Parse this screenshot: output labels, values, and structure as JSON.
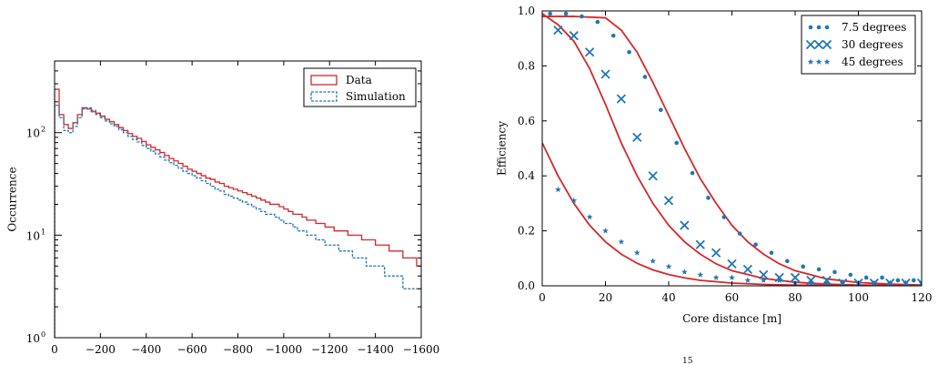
{
  "chart_data": [
    {
      "type": "step",
      "xlabel": "",
      "ylabel": "Occurrence",
      "yscale": "log",
      "xlim": [
        0,
        -1600
      ],
      "ylim": [
        1,
        500
      ],
      "xticks": [
        0,
        -200,
        -400,
        -600,
        -800,
        -1000,
        -1200,
        -1400,
        -1600
      ],
      "xtick_labels": [
        "0",
        "−200",
        "−400",
        "−600",
        "−800",
        "−1000",
        "−1200",
        "−1400",
        "−1600"
      ],
      "yticks": [
        1,
        10,
        100
      ],
      "ytick_labels": [
        "10",
        "10",
        "10"
      ],
      "ytick_exponents": [
        "0",
        "1",
        "2"
      ],
      "legend_position": "top-right",
      "bin_width": -20,
      "series": [
        {
          "name": "Data",
          "color": "#d62728",
          "style": "solid",
          "values": [
            265,
            150,
            120,
            110,
            125,
            150,
            175,
            170,
            160,
            155,
            145,
            135,
            128,
            120,
            112,
            105,
            98,
            92,
            88,
            82,
            76,
            72,
            68,
            64,
            60,
            56,
            53,
            50,
            47,
            44,
            42,
            40,
            38,
            36,
            35,
            33,
            32,
            30,
            29,
            28,
            27,
            26,
            25,
            24,
            23,
            22,
            21,
            20,
            20,
            19,
            18,
            17,
            16,
            16,
            15,
            14,
            14,
            13,
            13,
            12,
            12,
            11,
            11,
            11,
            10,
            10,
            10,
            9,
            9,
            9,
            8,
            8,
            8,
            7,
            7,
            7,
            6,
            6,
            6,
            5
          ]
        },
        {
          "name": "Simulation",
          "color": "#1f77b4",
          "style": "dashed",
          "values": [
            185,
            140,
            105,
            100,
            115,
            140,
            170,
            175,
            165,
            150,
            140,
            130,
            122,
            115,
            107,
            100,
            92,
            86,
            81,
            75,
            70,
            66,
            62,
            58,
            54,
            51,
            48,
            45,
            42,
            40,
            38,
            36,
            34,
            32,
            30,
            28,
            27,
            25,
            24,
            23,
            22,
            21,
            20,
            19,
            18,
            17,
            16,
            16,
            15,
            14,
            13,
            13,
            12,
            11,
            11,
            10,
            10,
            9,
            9,
            8,
            8,
            8,
            7,
            7,
            7,
            6,
            6,
            6,
            5,
            5,
            5,
            5,
            4,
            4,
            4,
            4,
            3,
            3,
            3,
            3
          ]
        }
      ]
    },
    {
      "type": "scatter+line",
      "xlabel": "Core distance [m]",
      "ylabel": "Efficiency",
      "xlim": [
        0,
        120
      ],
      "ylim": [
        0,
        1.0
      ],
      "xticks": [
        0,
        20,
        40,
        60,
        80,
        100,
        120
      ],
      "yticks": [
        0.0,
        0.2,
        0.4,
        0.6,
        0.8,
        1.0
      ],
      "legend_position": "top-right",
      "marker_color": "#1f77b4",
      "fit_color": "#d62728",
      "series": [
        {
          "name": "7.5 degrees",
          "marker": "dot",
          "x": [
            2.5,
            7.5,
            12.5,
            17.5,
            22.5,
            27.5,
            32.5,
            37.5,
            42.5,
            47.5,
            52.5,
            57.5,
            62.5,
            67.5,
            72.5,
            77.5,
            82.5,
            87.5,
            92.5,
            97.5,
            102.5,
            107.5,
            112.5,
            117.5
          ],
          "y": [
            0.99,
            0.99,
            0.98,
            0.96,
            0.91,
            0.85,
            0.76,
            0.64,
            0.52,
            0.41,
            0.32,
            0.25,
            0.19,
            0.15,
            0.12,
            0.09,
            0.07,
            0.06,
            0.05,
            0.04,
            0.03,
            0.03,
            0.02,
            0.02
          ],
          "fit": [
            [
              0,
              0.98
            ],
            [
              10,
              0.98
            ],
            [
              20,
              0.975
            ],
            [
              25,
              0.93
            ],
            [
              30,
              0.85
            ],
            [
              35,
              0.74
            ],
            [
              40,
              0.62
            ],
            [
              45,
              0.5
            ],
            [
              50,
              0.39
            ],
            [
              55,
              0.3
            ],
            [
              60,
              0.22
            ],
            [
              65,
              0.16
            ],
            [
              70,
              0.115
            ],
            [
              75,
              0.08
            ],
            [
              80,
              0.055
            ],
            [
              90,
              0.025
            ],
            [
              100,
              0.012
            ],
            [
              110,
              0.006
            ],
            [
              120,
              0.003
            ]
          ]
        },
        {
          "name": "30 degrees",
          "marker": "x",
          "x": [
            5,
            10,
            15,
            20,
            25,
            30,
            35,
            40,
            45,
            50,
            55,
            60,
            65,
            70,
            75,
            80,
            85,
            90,
            95,
            100,
            105,
            110,
            115,
            120
          ],
          "y": [
            0.93,
            0.91,
            0.85,
            0.77,
            0.68,
            0.54,
            0.4,
            0.31,
            0.22,
            0.15,
            0.12,
            0.08,
            0.06,
            0.04,
            0.03,
            0.03,
            0.02,
            0.02,
            0.01,
            0.01,
            0.01,
            0.01,
            0.01,
            0.01
          ],
          "fit": [
            [
              0,
              0.99
            ],
            [
              5,
              0.95
            ],
            [
              10,
              0.89
            ],
            [
              15,
              0.79
            ],
            [
              20,
              0.66
            ],
            [
              25,
              0.52
            ],
            [
              30,
              0.4
            ],
            [
              35,
              0.3
            ],
            [
              40,
              0.22
            ],
            [
              45,
              0.16
            ],
            [
              50,
              0.115
            ],
            [
              55,
              0.08
            ],
            [
              60,
              0.055
            ],
            [
              70,
              0.027
            ],
            [
              80,
              0.013
            ],
            [
              90,
              0.006
            ],
            [
              100,
              0.003
            ],
            [
              120,
              0.001
            ]
          ]
        },
        {
          "name": "45 degrees",
          "marker": "star",
          "x": [
            5,
            10,
            15,
            20,
            25,
            30,
            35,
            40,
            45,
            50,
            55,
            60,
            65,
            70,
            75,
            80,
            85,
            90,
            95,
            100,
            105,
            110,
            115,
            120
          ],
          "y": [
            0.35,
            0.31,
            0.25,
            0.2,
            0.16,
            0.12,
            0.09,
            0.07,
            0.05,
            0.04,
            0.03,
            0.03,
            0.02,
            0.02,
            0.02,
            0.01,
            0.01,
            0.01,
            0.01,
            0.01,
            0.01,
            0.01,
            0.01,
            0.01
          ],
          "fit": [
            [
              0,
              0.52
            ],
            [
              5,
              0.4
            ],
            [
              10,
              0.3
            ],
            [
              15,
              0.22
            ],
            [
              20,
              0.16
            ],
            [
              25,
              0.115
            ],
            [
              30,
              0.082
            ],
            [
              35,
              0.058
            ],
            [
              40,
              0.041
            ],
            [
              45,
              0.029
            ],
            [
              50,
              0.02
            ],
            [
              60,
              0.01
            ],
            [
              70,
              0.005
            ],
            [
              80,
              0.0025
            ],
            [
              100,
              0.0007
            ],
            [
              120,
              0.0002
            ]
          ]
        }
      ]
    }
  ],
  "figure_caption_fragment": "15"
}
